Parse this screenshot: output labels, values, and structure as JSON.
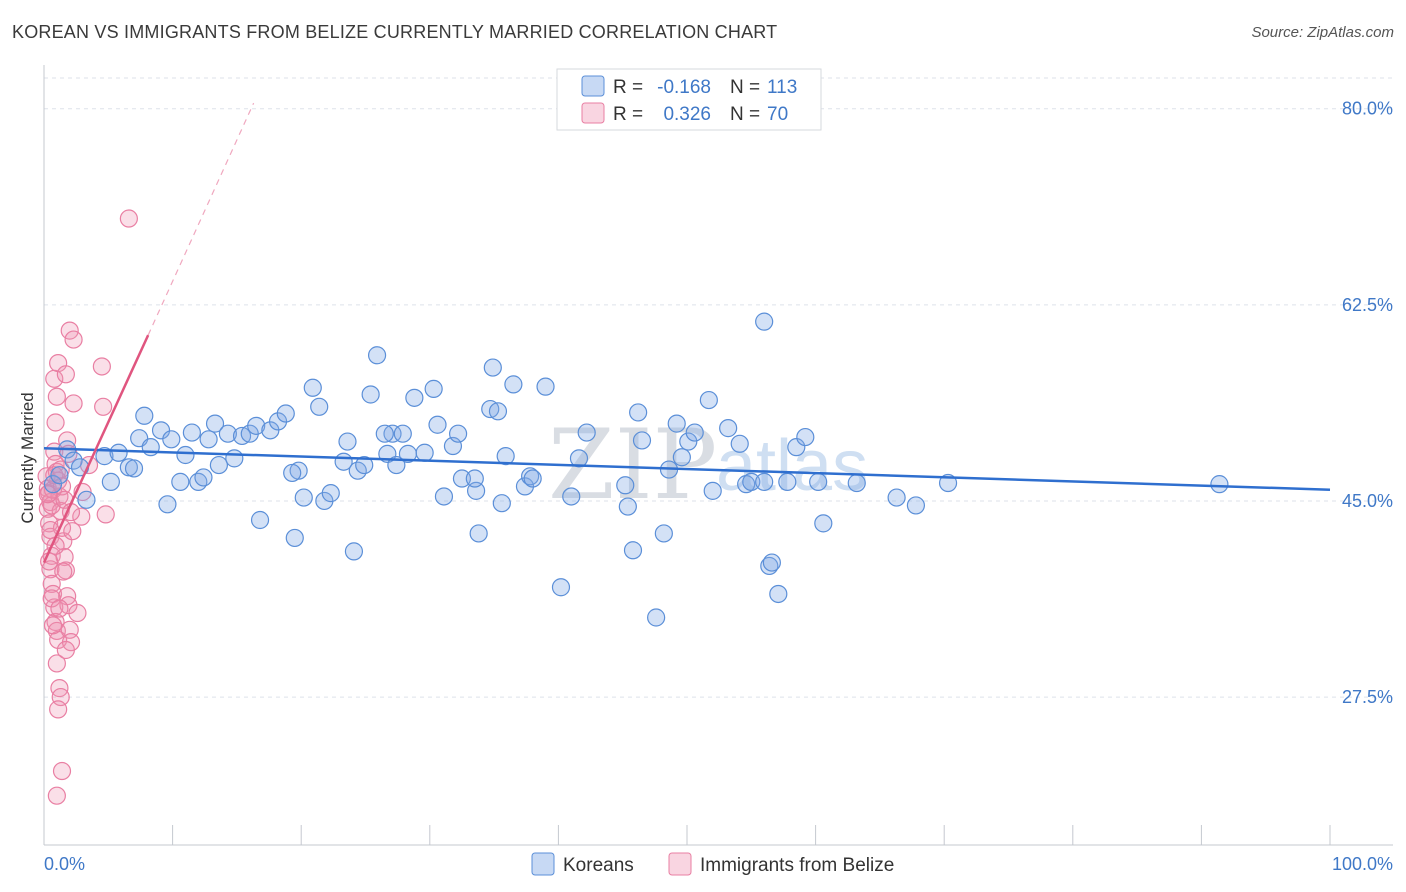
{
  "title": "KOREAN VS IMMIGRANTS FROM BELIZE CURRENTLY MARRIED CORRELATION CHART",
  "source": "Source: ZipAtlas.com",
  "watermark": {
    "zip": "ZIP",
    "atlas": "atlas"
  },
  "legend": {
    "rows": [
      {
        "r_label": "R =",
        "r_value": "-0.168",
        "n_label": "N =",
        "n_value": "113"
      },
      {
        "r_label": "R =",
        "r_value": "0.326",
        "n_label": "N =",
        "n_value": "70"
      }
    ]
  },
  "bottom_legend": [
    "Koreans",
    "Immigrants from Belize"
  ],
  "colors": {
    "koreans_fill": "rgba(130,170,230,0.35)",
    "koreans_stroke": "#5b8fd8",
    "koreans_line": "#2f6fcf",
    "belize_fill": "rgba(240,150,180,0.30)",
    "belize_stroke": "#e97fa3",
    "belize_line": "#e0557f",
    "tick_blue": "#3f78c7",
    "grid": "#dde2ea"
  },
  "chart_data": {
    "type": "scatter",
    "title": "KOREAN VS IMMIGRANTS FROM BELIZE CURRENTLY MARRIED CORRELATION CHART",
    "xlabel": "",
    "ylabel": "Currently Married",
    "xlim": [
      0,
      100
    ],
    "ylim": [
      14.3,
      83.9
    ],
    "x_tick_labels": [
      "0.0%",
      "100.0%"
    ],
    "y_ticks": [
      27.5,
      45.0,
      62.5,
      80.0
    ],
    "y_tick_labels": [
      "27.5%",
      "45.0%",
      "62.5%",
      "80.0%"
    ],
    "series": [
      {
        "name": "Koreans",
        "R": -0.168,
        "N": 113,
        "trend": {
          "x": [
            0,
            100
          ],
          "y": [
            49.7,
            46.0
          ]
        },
        "points": [
          [
            0.7,
            46.5
          ],
          [
            1.2,
            47.3
          ],
          [
            1.8,
            49.6
          ],
          [
            2.3,
            48.6
          ],
          [
            2.8,
            48.0
          ],
          [
            3.3,
            45.1
          ],
          [
            4.7,
            49.0
          ],
          [
            5.2,
            46.7
          ],
          [
            5.8,
            49.3
          ],
          [
            6.6,
            48.0
          ],
          [
            7.0,
            47.9
          ],
          [
            7.4,
            50.6
          ],
          [
            7.8,
            52.6
          ],
          [
            8.3,
            49.8
          ],
          [
            9.1,
            51.3
          ],
          [
            9.6,
            44.7
          ],
          [
            9.9,
            50.5
          ],
          [
            10.6,
            46.7
          ],
          [
            11.0,
            49.1
          ],
          [
            11.5,
            51.1
          ],
          [
            12.0,
            46.7
          ],
          [
            12.4,
            47.1
          ],
          [
            12.8,
            50.5
          ],
          [
            13.3,
            51.9
          ],
          [
            13.6,
            48.2
          ],
          [
            14.3,
            51.0
          ],
          [
            14.8,
            48.8
          ],
          [
            15.4,
            50.8
          ],
          [
            16.0,
            51.0
          ],
          [
            16.5,
            51.7
          ],
          [
            16.8,
            43.3
          ],
          [
            17.6,
            51.3
          ],
          [
            18.2,
            52.1
          ],
          [
            18.8,
            52.8
          ],
          [
            19.5,
            41.7
          ],
          [
            19.8,
            47.7
          ],
          [
            20.2,
            45.3
          ],
          [
            20.9,
            55.1
          ],
          [
            21.4,
            53.4
          ],
          [
            21.8,
            45.0
          ],
          [
            22.3,
            45.7
          ],
          [
            23.3,
            48.5
          ],
          [
            23.6,
            50.3
          ],
          [
            24.1,
            40.5
          ],
          [
            24.4,
            47.7
          ],
          [
            24.9,
            48.2
          ],
          [
            25.4,
            54.5
          ],
          [
            25.9,
            58.0
          ],
          [
            26.7,
            49.2
          ],
          [
            27.1,
            51.0
          ],
          [
            27.4,
            48.2
          ],
          [
            27.9,
            51.0
          ],
          [
            28.3,
            49.2
          ],
          [
            28.8,
            54.2
          ],
          [
            29.6,
            49.3
          ],
          [
            30.3,
            55.0
          ],
          [
            30.6,
            51.8
          ],
          [
            31.1,
            45.4
          ],
          [
            31.8,
            49.9
          ],
          [
            32.2,
            51.0
          ],
          [
            32.5,
            47.0
          ],
          [
            33.6,
            45.9
          ],
          [
            33.8,
            42.1
          ],
          [
            34.7,
            53.2
          ],
          [
            34.9,
            56.9
          ],
          [
            35.3,
            53.0
          ],
          [
            35.6,
            44.8
          ],
          [
            35.9,
            49.0
          ],
          [
            36.5,
            55.4
          ],
          [
            37.4,
            46.3
          ],
          [
            37.8,
            47.2
          ],
          [
            38.0,
            47.0
          ],
          [
            39.0,
            55.2
          ],
          [
            40.2,
            37.3
          ],
          [
            41.0,
            45.4
          ],
          [
            41.6,
            48.8
          ],
          [
            42.2,
            51.1
          ],
          [
            45.2,
            46.4
          ],
          [
            45.4,
            44.5
          ],
          [
            45.8,
            40.6
          ],
          [
            46.2,
            52.9
          ],
          [
            46.5,
            50.4
          ],
          [
            47.6,
            34.6
          ],
          [
            48.2,
            42.1
          ],
          [
            48.6,
            47.8
          ],
          [
            49.2,
            51.9
          ],
          [
            49.6,
            48.9
          ],
          [
            50.1,
            50.3
          ],
          [
            50.6,
            51.1
          ],
          [
            51.7,
            54.0
          ],
          [
            52.0,
            45.9
          ],
          [
            53.2,
            51.5
          ],
          [
            54.1,
            50.1
          ],
          [
            54.6,
            46.5
          ],
          [
            55.0,
            46.7
          ],
          [
            56.0,
            61.0
          ],
          [
            56.4,
            39.2
          ],
          [
            56.6,
            39.5
          ],
          [
            57.1,
            36.7
          ],
          [
            57.8,
            46.7
          ],
          [
            58.5,
            49.8
          ],
          [
            59.2,
            50.7
          ],
          [
            60.2,
            46.7
          ],
          [
            60.6,
            43.0
          ],
          [
            63.2,
            46.6
          ],
          [
            66.3,
            45.3
          ],
          [
            67.8,
            44.6
          ],
          [
            70.3,
            46.6
          ],
          [
            91.4,
            46.5
          ],
          [
            56.0,
            46.7
          ],
          [
            33.5,
            47.0
          ],
          [
            26.5,
            51.0
          ],
          [
            19.3,
            47.5
          ]
        ]
      },
      {
        "name": "Immigrants from Belize",
        "R": 0.326,
        "N": 70,
        "trend_solid": {
          "x": [
            0,
            8.1
          ],
          "y": [
            39.5,
            59.8
          ]
        },
        "trend_dashed": {
          "x": [
            8.1,
            16.3
          ],
          "y": [
            59.8,
            80.5
          ]
        },
        "points": [
          [
            0.2,
            47.2
          ],
          [
            0.3,
            46.1
          ],
          [
            0.4,
            45.7
          ],
          [
            0.5,
            44.9
          ],
          [
            0.3,
            44.3
          ],
          [
            0.4,
            43.0
          ],
          [
            0.5,
            41.8
          ],
          [
            0.6,
            40.1
          ],
          [
            0.5,
            38.9
          ],
          [
            0.6,
            37.6
          ],
          [
            0.7,
            36.7
          ],
          [
            0.8,
            35.5
          ],
          [
            0.9,
            34.2
          ],
          [
            1.0,
            33.4
          ],
          [
            1.1,
            32.6
          ],
          [
            1.0,
            30.5
          ],
          [
            1.2,
            28.3
          ],
          [
            1.3,
            27.5
          ],
          [
            1.1,
            26.4
          ],
          [
            1.4,
            20.9
          ],
          [
            1.0,
            18.7
          ],
          [
            0.8,
            49.4
          ],
          [
            0.9,
            48.3
          ],
          [
            1.0,
            47.6
          ],
          [
            1.1,
            46.8
          ],
          [
            1.2,
            45.4
          ],
          [
            1.3,
            44.1
          ],
          [
            1.4,
            42.6
          ],
          [
            1.5,
            41.4
          ],
          [
            1.6,
            40.0
          ],
          [
            1.7,
            38.8
          ],
          [
            1.8,
            36.5
          ],
          [
            1.9,
            35.7
          ],
          [
            2.0,
            33.5
          ],
          [
            2.1,
            32.4
          ],
          [
            1.7,
            31.7
          ],
          [
            2.6,
            35.0
          ],
          [
            2.9,
            43.6
          ],
          [
            3.0,
            45.8
          ],
          [
            3.5,
            48.2
          ],
          [
            0.9,
            52.0
          ],
          [
            1.0,
            54.3
          ],
          [
            0.8,
            55.9
          ],
          [
            1.1,
            57.3
          ],
          [
            1.7,
            56.3
          ],
          [
            2.0,
            60.2
          ],
          [
            2.3,
            59.4
          ],
          [
            2.3,
            53.7
          ],
          [
            4.5,
            57.0
          ],
          [
            4.6,
            53.4
          ],
          [
            4.8,
            43.8
          ],
          [
            6.6,
            70.2
          ],
          [
            0.4,
            39.6
          ],
          [
            0.5,
            42.4
          ],
          [
            0.6,
            44.6
          ],
          [
            0.7,
            46.0
          ],
          [
            0.8,
            47.3
          ],
          [
            1.3,
            47.8
          ],
          [
            1.4,
            46.3
          ],
          [
            1.6,
            45.1
          ],
          [
            1.8,
            50.4
          ],
          [
            1.9,
            49.2
          ],
          [
            2.1,
            44.0
          ],
          [
            2.2,
            42.3
          ],
          [
            0.6,
            36.3
          ],
          [
            0.7,
            33.9
          ],
          [
            1.5,
            38.7
          ],
          [
            1.2,
            35.4
          ],
          [
            0.9,
            41.0
          ],
          [
            0.3,
            45.6
          ]
        ]
      }
    ]
  }
}
